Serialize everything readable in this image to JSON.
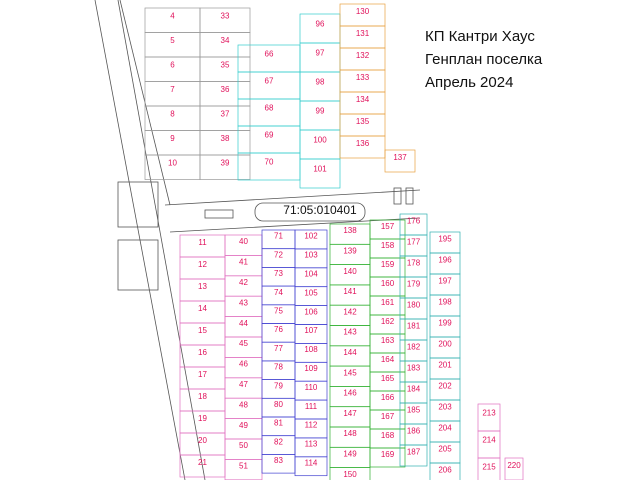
{
  "header": {
    "lines": [
      "КП Кантри Хаус",
      "Генплан поселка",
      "Апрель 2024"
    ]
  },
  "cadastral": "71:05:010401",
  "columns": [
    {
      "plots": [
        4,
        5,
        6,
        7,
        8,
        9,
        10
      ]
    },
    {
      "plots": [
        33,
        34,
        35,
        36,
        37,
        38,
        39
      ]
    },
    {
      "plots": [
        66,
        67,
        68,
        69,
        70
      ]
    },
    {
      "plots": [
        96,
        97,
        98,
        99,
        100,
        101
      ]
    },
    {
      "plots": [
        130,
        131,
        132,
        133,
        134,
        135,
        136
      ]
    },
    {
      "plots": [
        11,
        12,
        13,
        14,
        15,
        16,
        17,
        18,
        19,
        20,
        21
      ]
    },
    {
      "plots": [
        40,
        41,
        42,
        43,
        44,
        45,
        46,
        47,
        48,
        49,
        50,
        51
      ]
    },
    {
      "plots": [
        71,
        72,
        73,
        74,
        75,
        76,
        77,
        78,
        79,
        80,
        81,
        82,
        83
      ]
    },
    {
      "plots": [
        102,
        103,
        104,
        105,
        106,
        107,
        108,
        109,
        110,
        111,
        112,
        113,
        114
      ]
    },
    {
      "plots": [
        138,
        139,
        140,
        141,
        142,
        143,
        144,
        145,
        146,
        147,
        148,
        149,
        150
      ]
    },
    {
      "plots": [
        157,
        158,
        159,
        160,
        161,
        162,
        163,
        164,
        165,
        166,
        167,
        168,
        169
      ]
    },
    {
      "plots": [
        176,
        177,
        178,
        179,
        180,
        181,
        182,
        183,
        184,
        185,
        186,
        187
      ]
    },
    {
      "plots": [
        195,
        196,
        197,
        198,
        199,
        200,
        201,
        202,
        203,
        204,
        205,
        206
      ]
    },
    {
      "plots": [
        213,
        214,
        215
      ]
    },
    {
      "plots": [
        137
      ]
    },
    {
      "plots": [
        220
      ]
    }
  ]
}
